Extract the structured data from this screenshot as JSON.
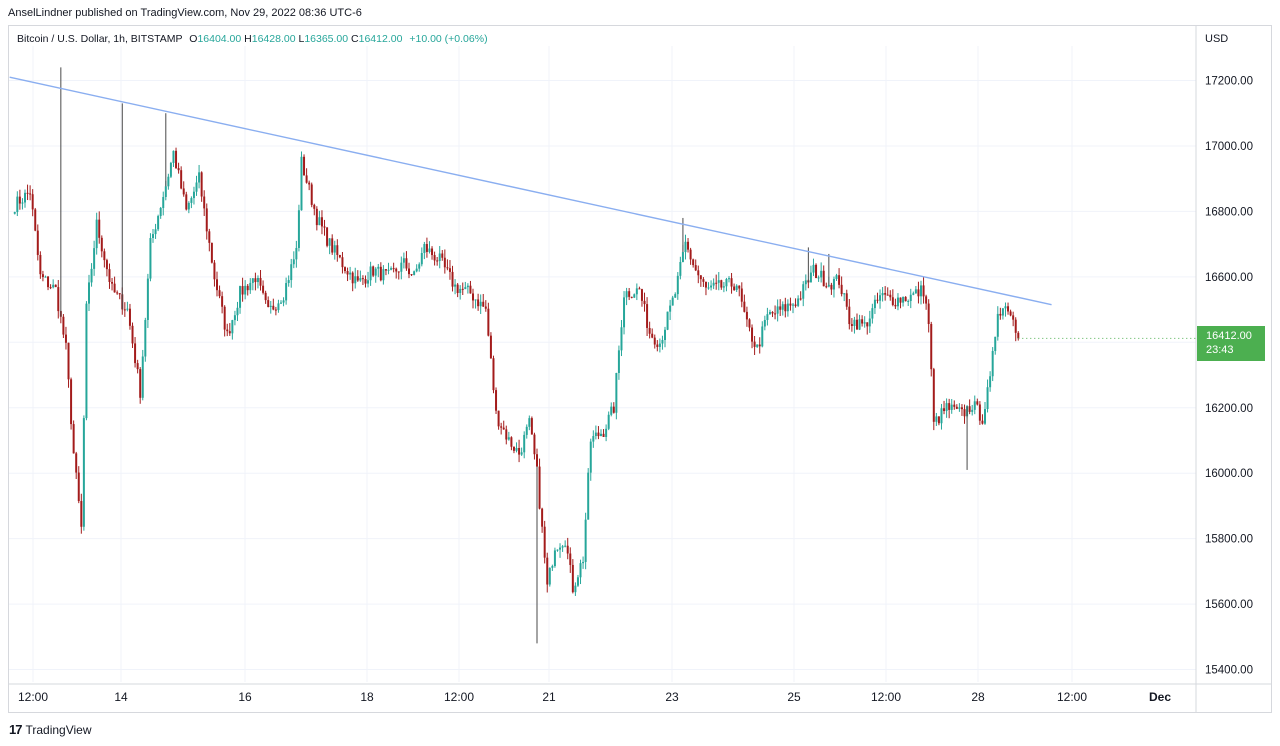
{
  "publisher_line": "AnselLindner published on TradingView.com, Nov 29, 2022 08:36 UTC-6",
  "legend": {
    "symbol": "Bitcoin / U.S. Dollar, 1h, BITSTAMP",
    "open_label": "O",
    "open": "16404.00",
    "high_label": "H",
    "high": "16428.00",
    "low_label": "L",
    "low": "16365.00",
    "close_label": "C",
    "close": "16412.00",
    "change": "+10.00 (+0.06%)"
  },
  "currency": "USD",
  "price_tag": {
    "price": "16412.00",
    "countdown": "23:43"
  },
  "footer": {
    "logo": "17",
    "brand": "TradingView"
  },
  "colors": {
    "up": "#26a69a",
    "down": "#a31b1b",
    "trendline": "#8aaef0",
    "last_price": "#4caf50"
  },
  "chart_data": {
    "type": "candlestick",
    "timeframe": "1h",
    "y_ticks": [
      17200,
      17000,
      16800,
      16600,
      16400,
      16200,
      16000,
      15800,
      15600,
      15400
    ],
    "y_tick_labels": [
      "17200.00",
      "17000.00",
      "16800.00",
      "16600.00",
      "16400.00",
      "16200.00",
      "16000.00",
      "15800.00",
      "15600.00",
      "15400.00"
    ],
    "ylim": [
      15330,
      17380
    ],
    "x_ticks": [
      "12:00",
      "14",
      "16",
      "18",
      "12:00",
      "21",
      "23",
      "25",
      "12:00",
      "28",
      "12:00",
      "Dec"
    ],
    "grid": true,
    "last_price": 16412,
    "trendline": [
      {
        "date": "2022-11-12 22:00",
        "price": 17210
      },
      {
        "date": "2022-11-29 21:00",
        "price": 16515
      }
    ],
    "anchors": [
      {
        "date": "2022-11-13 00:00",
        "price": 16820
      },
      {
        "date": "2022-11-13 06:00",
        "price": 16860
      },
      {
        "date": "2022-11-13 10:00",
        "price": 16600
      },
      {
        "date": "2022-11-13 16:00",
        "price": 16560
      },
      {
        "date": "2022-11-13 20:00",
        "price": 16380
      },
      {
        "date": "2022-11-13 23:00",
        "price": 16060
      },
      {
        "date": "2022-11-14 02:00",
        "price": 15830
      },
      {
        "date": "2022-11-14 04:00",
        "price": 16500
      },
      {
        "date": "2022-11-14 08:00",
        "price": 16760
      },
      {
        "date": "2022-11-14 14:00",
        "price": 16560
      },
      {
        "date": "2022-11-14 20:00",
        "price": 16500
      },
      {
        "date": "2022-11-15 01:00",
        "price": 16250
      },
      {
        "date": "2022-11-15 05:00",
        "price": 16700
      },
      {
        "date": "2022-11-15 11:00",
        "price": 16880
      },
      {
        "date": "2022-11-15 14:00",
        "price": 16980
      },
      {
        "date": "2022-11-15 19:00",
        "price": 16800
      },
      {
        "date": "2022-11-16 00:00",
        "price": 16900
      },
      {
        "date": "2022-11-16 06:00",
        "price": 16600
      },
      {
        "date": "2022-11-16 11:00",
        "price": 16420
      },
      {
        "date": "2022-11-16 16:00",
        "price": 16550
      },
      {
        "date": "2022-11-16 22:00",
        "price": 16600
      },
      {
        "date": "2022-11-17 03:00",
        "price": 16490
      },
      {
        "date": "2022-11-17 09:00",
        "price": 16550
      },
      {
        "date": "2022-11-17 14:00",
        "price": 16680
      },
      {
        "date": "2022-11-17 16:00",
        "price": 16950
      },
      {
        "date": "2022-11-17 22:00",
        "price": 16780
      },
      {
        "date": "2022-11-18 03:00",
        "price": 16700
      },
      {
        "date": "2022-11-18 08:00",
        "price": 16640
      },
      {
        "date": "2022-11-18 14:00",
        "price": 16580
      },
      {
        "date": "2022-11-18 20:00",
        "price": 16620
      },
      {
        "date": "2022-11-19 02:00",
        "price": 16600
      },
      {
        "date": "2022-11-19 08:00",
        "price": 16640
      },
      {
        "date": "2022-11-19 12:00",
        "price": 16600
      },
      {
        "date": "2022-11-19 16:00",
        "price": 16690
      },
      {
        "date": "2022-11-19 22:00",
        "price": 16650
      },
      {
        "date": "2022-11-20 04:00",
        "price": 16570
      },
      {
        "date": "2022-11-20 10:00",
        "price": 16550
      },
      {
        "date": "2022-11-20 16:00",
        "price": 16500
      },
      {
        "date": "2022-11-20 20:00",
        "price": 16180
      },
      {
        "date": "2022-11-21 01:00",
        "price": 16100
      },
      {
        "date": "2022-11-21 05:00",
        "price": 16060
      },
      {
        "date": "2022-11-21 09:00",
        "price": 16150
      },
      {
        "date": "2022-11-21 12:00",
        "price": 16000
      },
      {
        "date": "2022-11-21 16:00",
        "price": 15650
      },
      {
        "date": "2022-11-21 19:00",
        "price": 15780
      },
      {
        "date": "2022-11-21 23:00",
        "price": 15800
      },
      {
        "date": "2022-11-22 02:00",
        "price": 15650
      },
      {
        "date": "2022-11-22 06:00",
        "price": 15740
      },
      {
        "date": "2022-11-22 09:00",
        "price": 16100
      },
      {
        "date": "2022-11-22 14:00",
        "price": 16130
      },
      {
        "date": "2022-11-22 18:00",
        "price": 16200
      },
      {
        "date": "2022-11-22 22:00",
        "price": 16550
      },
      {
        "date": "2022-11-23 04:00",
        "price": 16560
      },
      {
        "date": "2022-11-23 08:00",
        "price": 16430
      },
      {
        "date": "2022-11-23 12:00",
        "price": 16400
      },
      {
        "date": "2022-11-23 18:00",
        "price": 16550
      },
      {
        "date": "2022-11-23 22:00",
        "price": 16700
      },
      {
        "date": "2022-11-24 02:00",
        "price": 16620
      },
      {
        "date": "2022-11-24 06:00",
        "price": 16560
      },
      {
        "date": "2022-11-24 12:00",
        "price": 16570
      },
      {
        "date": "2022-11-24 18:00",
        "price": 16580
      },
      {
        "date": "2022-11-24 22:00",
        "price": 16450
      },
      {
        "date": "2022-11-25 02:00",
        "price": 16380
      },
      {
        "date": "2022-11-25 06:00",
        "price": 16480
      },
      {
        "date": "2022-11-25 12:00",
        "price": 16500
      },
      {
        "date": "2022-11-25 18:00",
        "price": 16530
      },
      {
        "date": "2022-11-26 00:00",
        "price": 16620
      },
      {
        "date": "2022-11-26 06:00",
        "price": 16580
      },
      {
        "date": "2022-11-26 10:00",
        "price": 16590
      },
      {
        "date": "2022-11-26 14:00",
        "price": 16470
      },
      {
        "date": "2022-11-26 20:00",
        "price": 16450
      },
      {
        "date": "2022-11-27 02:00",
        "price": 16540
      },
      {
        "date": "2022-11-27 08:00",
        "price": 16530
      },
      {
        "date": "2022-11-27 14:00",
        "price": 16540
      },
      {
        "date": "2022-11-27 19:00",
        "price": 16560
      },
      {
        "date": "2022-11-27 21:00",
        "price": 16460
      },
      {
        "date": "2022-11-27 23:00",
        "price": 16150
      },
      {
        "date": "2022-11-28 04:00",
        "price": 16200
      },
      {
        "date": "2022-11-28 10:00",
        "price": 16180
      },
      {
        "date": "2022-11-28 14:00",
        "price": 16210
      },
      {
        "date": "2022-11-28 18:00",
        "price": 16170
      },
      {
        "date": "2022-11-28 21:00",
        "price": 16280
      },
      {
        "date": "2022-11-29 00:00",
        "price": 16500
      },
      {
        "date": "2022-11-29 04:00",
        "price": 16510
      },
      {
        "date": "2022-11-29 06:00",
        "price": 16470
      },
      {
        "date": "2022-11-29 08:00",
        "price": 16412
      }
    ],
    "wicks": [
      {
        "date": "2022-11-13 18:00",
        "price": 17240
      },
      {
        "date": "2022-11-14 18:00",
        "price": 17130
      },
      {
        "date": "2022-11-15 11:00",
        "price": 17100
      },
      {
        "date": "2022-11-21 12:00",
        "price": 15480
      },
      {
        "date": "2022-11-23 21:00",
        "price": 16780
      },
      {
        "date": "2022-11-25 22:00",
        "price": 16690
      },
      {
        "date": "2022-11-26 06:00",
        "price": 16670
      },
      {
        "date": "2022-11-28 12:00",
        "price": 16010
      }
    ]
  }
}
